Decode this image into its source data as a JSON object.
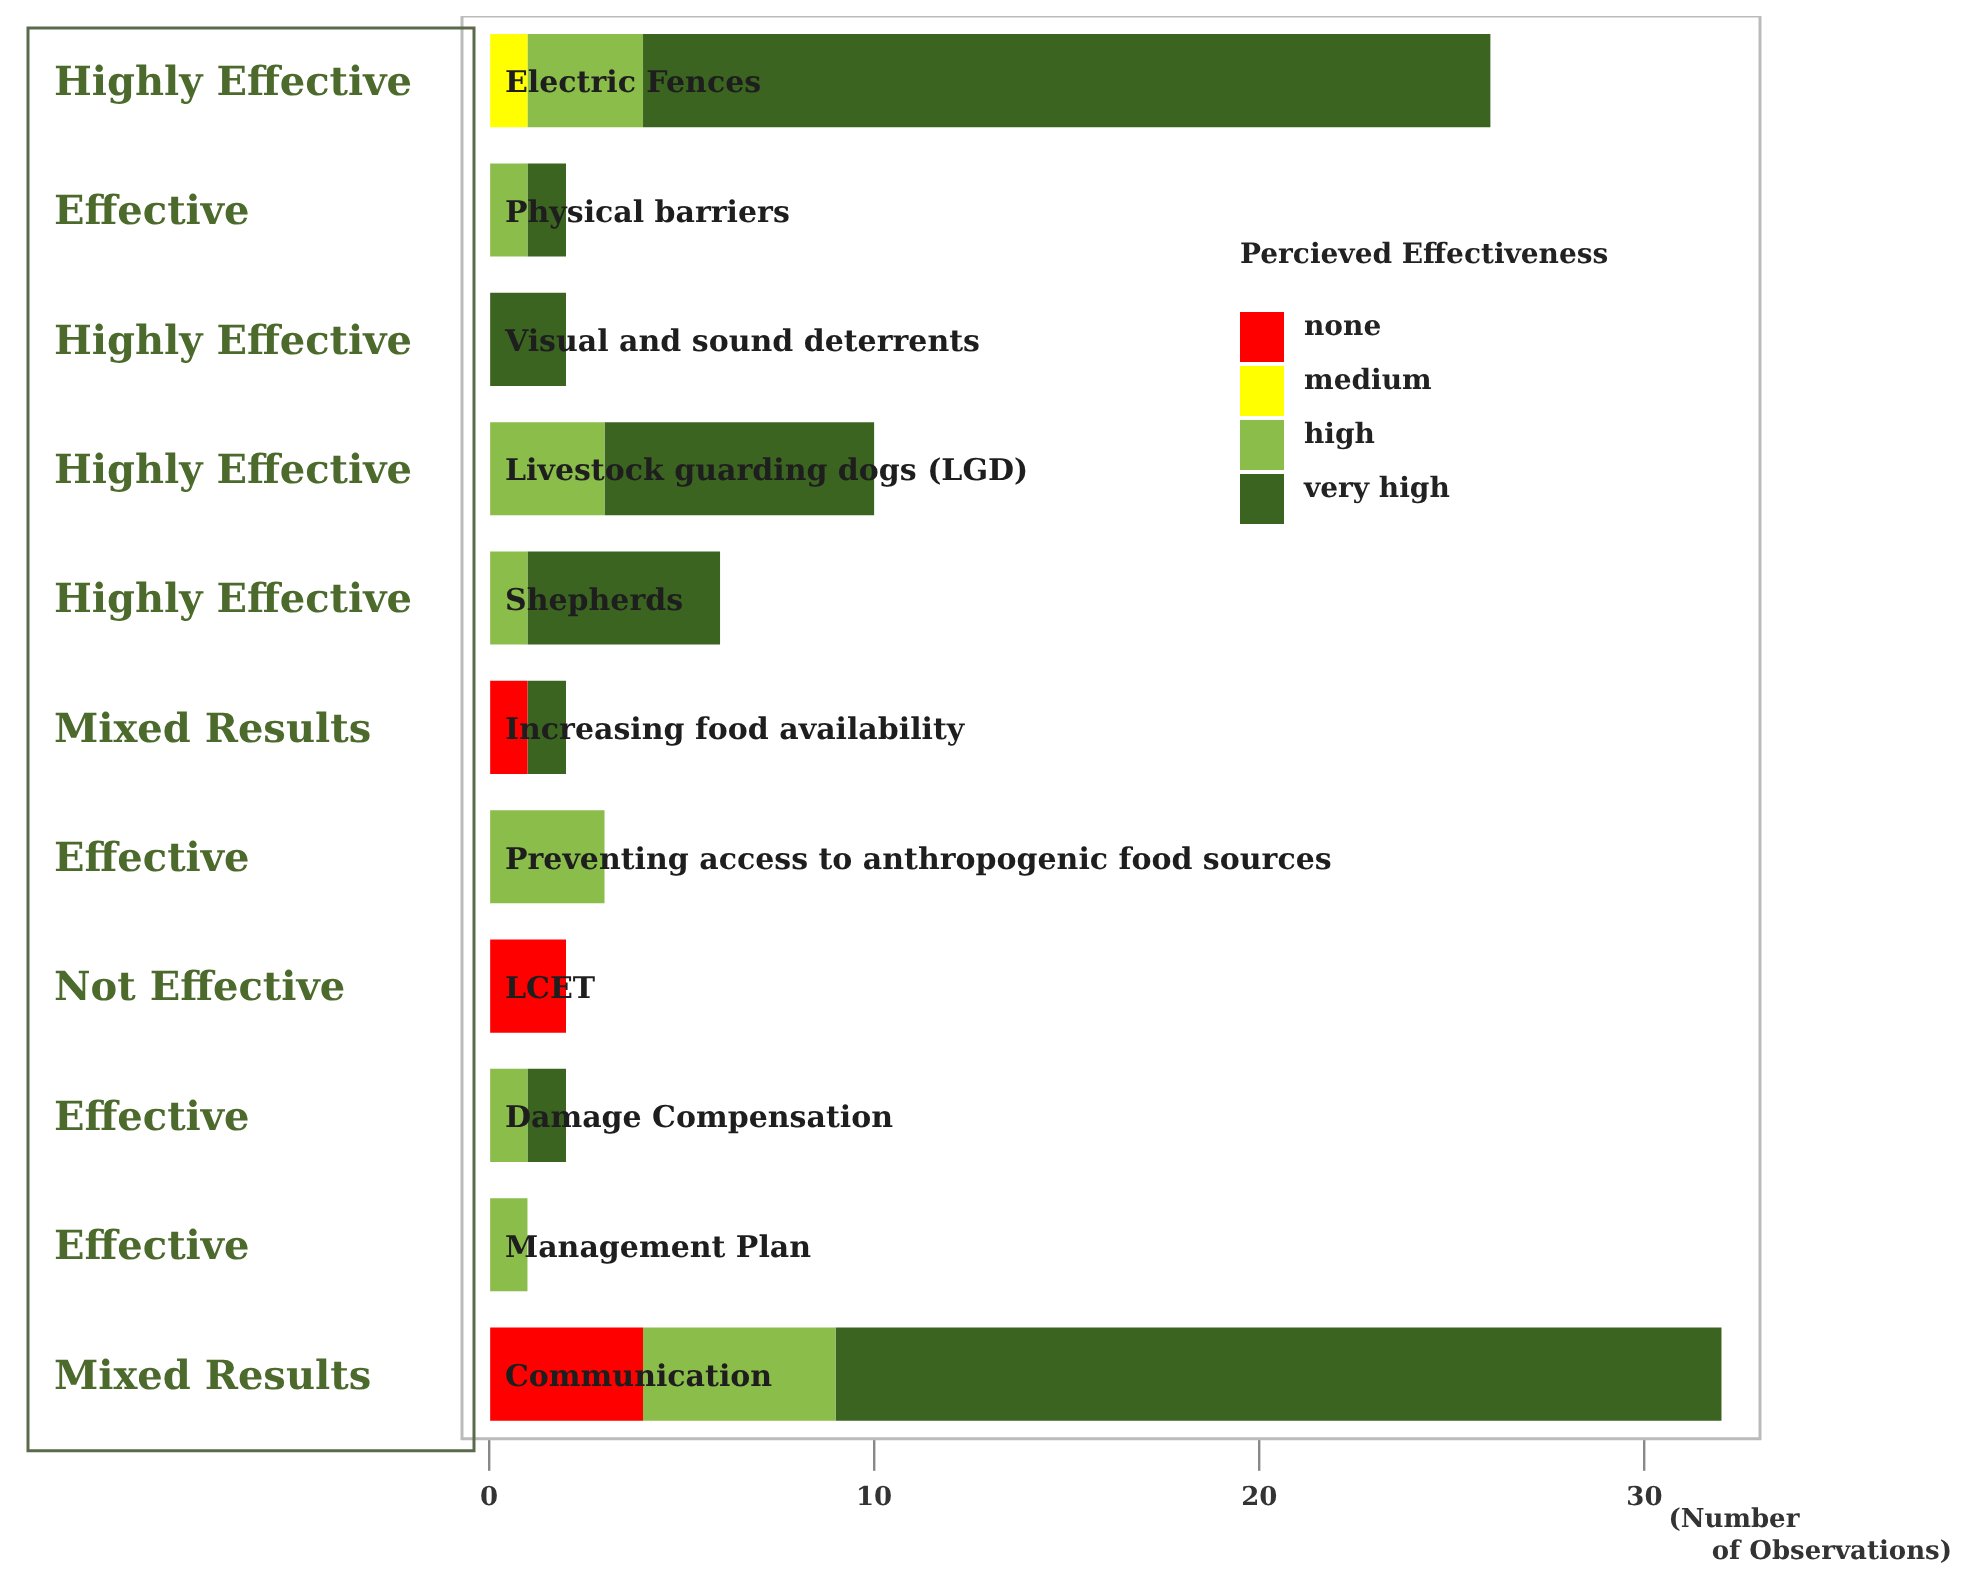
{
  "chart_data": {
    "type": "bar",
    "orientation": "horizontal",
    "stacked": true,
    "categories": [
      "Electric Fences",
      "Physical barriers",
      "Visual and sound deterrents",
      "Livestock guarding dogs (LGD)",
      "Shepherds",
      "Increasing food availability",
      "Preventing access to anthropogenic food sources",
      "LCET",
      "Damage Compensation",
      "Management Plan",
      "Communication"
    ],
    "series": [
      {
        "name": "none",
        "color": "#ff0000",
        "values": [
          0,
          0,
          0,
          0,
          0,
          1,
          0,
          2,
          0,
          0,
          4
        ]
      },
      {
        "name": "medium",
        "color": "#ffff00",
        "values": [
          1,
          0,
          0,
          0,
          0,
          0,
          0,
          0,
          0,
          0,
          0
        ]
      },
      {
        "name": "high",
        "color": "#8bbd4b",
        "values": [
          3,
          1,
          0,
          3,
          1,
          0,
          3,
          0,
          1,
          1,
          5
        ]
      },
      {
        "name": "very high",
        "color": "#3b6421",
        "values": [
          22,
          1,
          2,
          7,
          5,
          1,
          0,
          0,
          1,
          0,
          23
        ]
      }
    ],
    "annotations": [
      "Highly Effective",
      "Effective",
      "Highly Effective",
      "Highly Effective",
      "Highly Effective",
      "Mixed Results",
      "Effective",
      "Not Effective",
      "Effective",
      "Effective",
      "Mixed Results"
    ],
    "xlabel": "(Number of Observations)",
    "xlim": [
      -0.7,
      33
    ],
    "xticks": [
      0,
      10,
      20,
      30
    ],
    "legend": "top right",
    "legend_title": "Percieved Effectiveness",
    "grid": false
  }
}
